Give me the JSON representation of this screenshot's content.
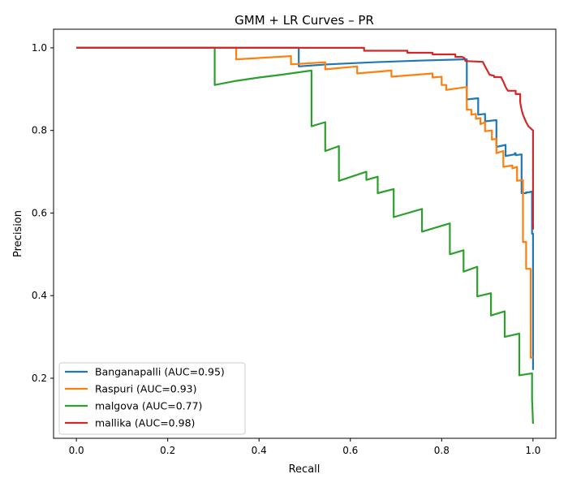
{
  "chart_data": {
    "type": "line",
    "title": "GMM + LR Curves – PR",
    "xlabel": "Recall",
    "ylabel": "Precision",
    "xlim": [
      -0.05,
      1.05
    ],
    "ylim": [
      0.0546,
      1.045
    ],
    "x_ticks": [
      "0.0",
      "0.2",
      "0.4",
      "0.6",
      "0.8",
      "1.0"
    ],
    "y_ticks": [
      "0.2",
      "0.4",
      "0.6",
      "0.8",
      "1.0"
    ],
    "grid": false,
    "legend_position": "lower-left",
    "series": [
      {
        "name": "Banganapalli (AUC=0.95)",
        "color": "#1f77b4",
        "points": [
          [
            0.0,
            1.0
          ],
          [
            0.487,
            1.0
          ],
          [
            0.487,
            0.955
          ],
          [
            0.55,
            0.96
          ],
          [
            0.65,
            0.965
          ],
          [
            0.75,
            0.969
          ],
          [
            0.85,
            0.972
          ],
          [
            0.855,
            0.972
          ],
          [
            0.855,
            0.875
          ],
          [
            0.88,
            0.878
          ],
          [
            0.88,
            0.838
          ],
          [
            0.895,
            0.84
          ],
          [
            0.895,
            0.822
          ],
          [
            0.92,
            0.825
          ],
          [
            0.92,
            0.76
          ],
          [
            0.94,
            0.765
          ],
          [
            0.94,
            0.738
          ],
          [
            0.96,
            0.742
          ],
          [
            0.96,
            0.745
          ],
          [
            0.962,
            0.745
          ],
          [
            0.962,
            0.74
          ],
          [
            0.975,
            0.742
          ],
          [
            0.975,
            0.648
          ],
          [
            0.985,
            0.648
          ],
          [
            0.985,
            0.65
          ],
          [
            0.99,
            0.65
          ],
          [
            0.998,
            0.652
          ],
          [
            0.998,
            0.55
          ],
          [
            1.0,
            0.55
          ],
          [
            1.0,
            0.24
          ],
          [
            1.0,
            0.22
          ]
        ]
      },
      {
        "name": "Raspuri (AUC=0.93)",
        "color": "#ff7f0e",
        "points": [
          [
            0.0,
            1.0
          ],
          [
            0.35,
            1.0
          ],
          [
            0.35,
            0.972
          ],
          [
            0.47,
            0.98
          ],
          [
            0.47,
            0.96
          ],
          [
            0.545,
            0.965
          ],
          [
            0.545,
            0.948
          ],
          [
            0.615,
            0.955
          ],
          [
            0.615,
            0.938
          ],
          [
            0.69,
            0.945
          ],
          [
            0.69,
            0.93
          ],
          [
            0.78,
            0.938
          ],
          [
            0.78,
            0.928
          ],
          [
            0.8,
            0.93
          ],
          [
            0.8,
            0.91
          ],
          [
            0.81,
            0.91
          ],
          [
            0.81,
            0.898
          ],
          [
            0.855,
            0.905
          ],
          [
            0.855,
            0.85
          ],
          [
            0.865,
            0.85
          ],
          [
            0.865,
            0.838
          ],
          [
            0.875,
            0.84
          ],
          [
            0.875,
            0.828
          ],
          [
            0.885,
            0.83
          ],
          [
            0.885,
            0.815
          ],
          [
            0.895,
            0.82
          ],
          [
            0.895,
            0.798
          ],
          [
            0.91,
            0.8
          ],
          [
            0.91,
            0.778
          ],
          [
            0.92,
            0.78
          ],
          [
            0.92,
            0.745
          ],
          [
            0.935,
            0.75
          ],
          [
            0.935,
            0.712
          ],
          [
            0.955,
            0.715
          ],
          [
            0.955,
            0.708
          ],
          [
            0.965,
            0.712
          ],
          [
            0.965,
            0.678
          ],
          [
            0.978,
            0.68
          ],
          [
            0.978,
            0.53
          ],
          [
            0.985,
            0.53
          ],
          [
            0.985,
            0.465
          ],
          [
            0.995,
            0.465
          ],
          [
            0.995,
            0.25
          ],
          [
            1.0,
            0.25
          ]
        ]
      },
      {
        "name": "malgova (AUC=0.77)",
        "color": "#2ca02c",
        "points": [
          [
            0.0,
            1.0
          ],
          [
            0.303,
            1.0
          ],
          [
            0.303,
            0.91
          ],
          [
            0.35,
            0.92
          ],
          [
            0.4,
            0.928
          ],
          [
            0.45,
            0.935
          ],
          [
            0.515,
            0.945
          ],
          [
            0.515,
            0.81
          ],
          [
            0.545,
            0.82
          ],
          [
            0.545,
            0.75
          ],
          [
            0.575,
            0.762
          ],
          [
            0.575,
            0.678
          ],
          [
            0.635,
            0.7
          ],
          [
            0.635,
            0.68
          ],
          [
            0.66,
            0.688
          ],
          [
            0.66,
            0.648
          ],
          [
            0.695,
            0.658
          ],
          [
            0.695,
            0.59
          ],
          [
            0.757,
            0.61
          ],
          [
            0.757,
            0.555
          ],
          [
            0.818,
            0.575
          ],
          [
            0.818,
            0.5
          ],
          [
            0.848,
            0.51
          ],
          [
            0.848,
            0.458
          ],
          [
            0.878,
            0.47
          ],
          [
            0.878,
            0.398
          ],
          [
            0.908,
            0.406
          ],
          [
            0.908,
            0.352
          ],
          [
            0.938,
            0.362
          ],
          [
            0.938,
            0.3
          ],
          [
            0.97,
            0.308
          ],
          [
            0.97,
            0.207
          ],
          [
            0.998,
            0.212
          ],
          [
            0.998,
            0.15
          ],
          [
            1.0,
            0.09
          ]
        ]
      },
      {
        "name": "mallika (AUC=0.98)",
        "color": "#d62728",
        "points": [
          [
            0.0,
            1.0
          ],
          [
            0.63,
            1.0
          ],
          [
            0.63,
            0.993
          ],
          [
            0.725,
            0.993
          ],
          [
            0.725,
            0.988
          ],
          [
            0.78,
            0.988
          ],
          [
            0.78,
            0.984
          ],
          [
            0.83,
            0.984
          ],
          [
            0.83,
            0.978
          ],
          [
            0.845,
            0.978
          ],
          [
            0.85,
            0.975
          ],
          [
            0.852,
            0.968
          ],
          [
            0.89,
            0.966
          ],
          [
            0.895,
            0.955
          ],
          [
            0.9,
            0.945
          ],
          [
            0.905,
            0.935
          ],
          [
            0.915,
            0.932
          ],
          [
            0.915,
            0.929
          ],
          [
            0.93,
            0.929
          ],
          [
            0.935,
            0.918
          ],
          [
            0.94,
            0.905
          ],
          [
            0.945,
            0.896
          ],
          [
            0.962,
            0.896
          ],
          [
            0.962,
            0.888
          ],
          [
            0.972,
            0.888
          ],
          [
            0.972,
            0.868
          ],
          [
            0.975,
            0.85
          ],
          [
            0.978,
            0.838
          ],
          [
            0.982,
            0.828
          ],
          [
            0.985,
            0.82
          ],
          [
            0.99,
            0.81
          ],
          [
            0.995,
            0.805
          ],
          [
            0.998,
            0.802
          ],
          [
            1.0,
            0.8
          ],
          [
            1.0,
            0.56
          ]
        ]
      }
    ]
  }
}
